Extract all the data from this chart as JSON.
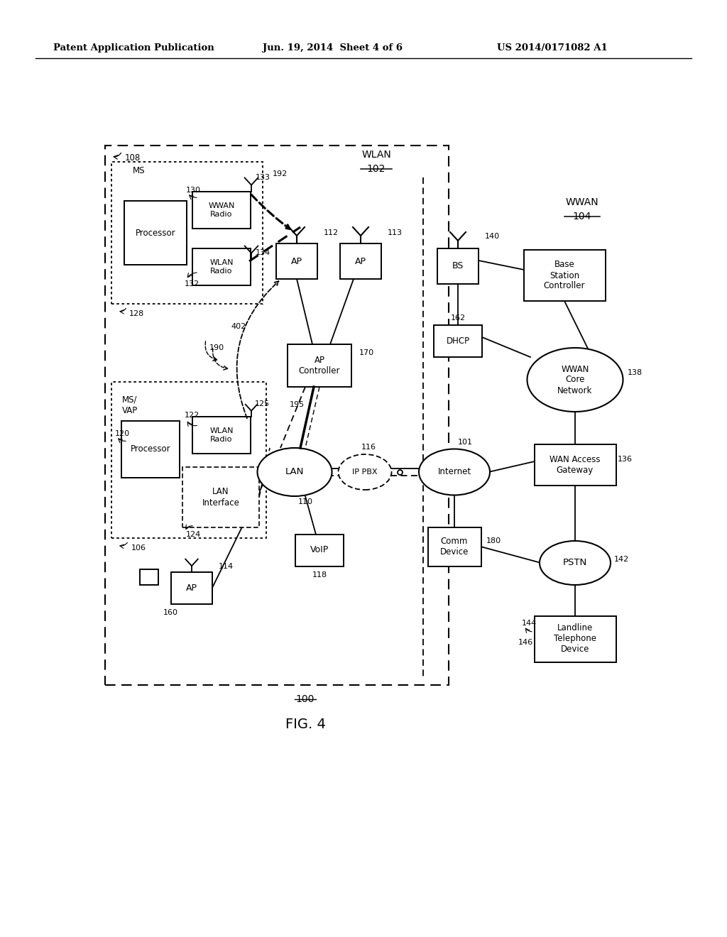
{
  "header_left": "Patent Application Publication",
  "header_mid": "Jun. 19, 2014  Sheet 4 of 6",
  "header_right": "US 2014/0171082 A1",
  "fig_label": "FIG. 4",
  "fig_number": "100",
  "bg_color": "#ffffff",
  "line_color": "#000000"
}
